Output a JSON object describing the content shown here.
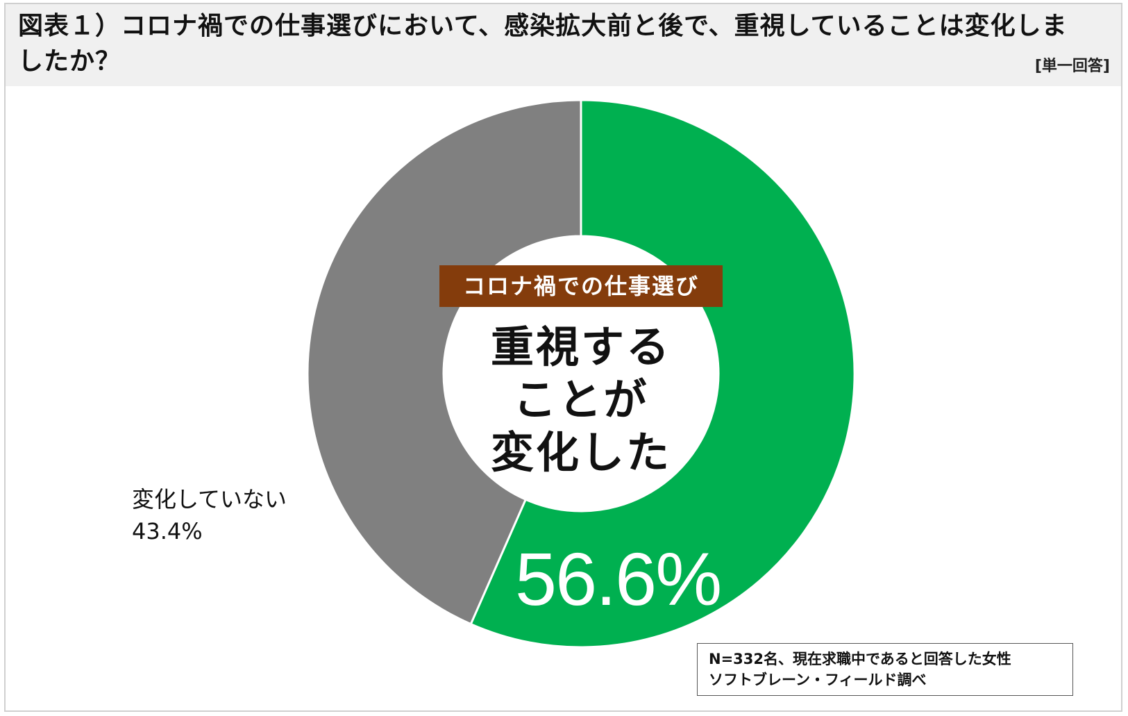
{
  "title": "図表１）コロナ禍での仕事選びにおいて、感染拡大前と後で、重視していることは変化しましたか？",
  "answer_type": "[単一回答]",
  "center": {
    "tag": "コロナ禍での仕事選び",
    "lines": [
      "重視する",
      "ことが",
      "変化した"
    ]
  },
  "labels": {
    "changed_value": "56.6%",
    "unchanged_name": "変化していない",
    "unchanged_value": "43.4%"
  },
  "note": {
    "line1": "N=332名、現在求職中であると回答した女性",
    "line2": "ソフトブレーン・フィールド調べ"
  },
  "colors": {
    "changed": "#00b050",
    "unchanged": "#808080",
    "tag_background": "#843c0c",
    "title_background": "#f0f0f0"
  },
  "chart_data": {
    "type": "pie",
    "donut": true,
    "start": "12 o'clock",
    "direction": "clockwise",
    "slices": [
      {
        "name": "重視することが変化した",
        "value": 56.6,
        "label": "56.6%",
        "color": "#00b050"
      },
      {
        "name": "変化していない",
        "value": 43.4,
        "label": "43.4%",
        "color": "#808080"
      }
    ],
    "legend": "none"
  }
}
